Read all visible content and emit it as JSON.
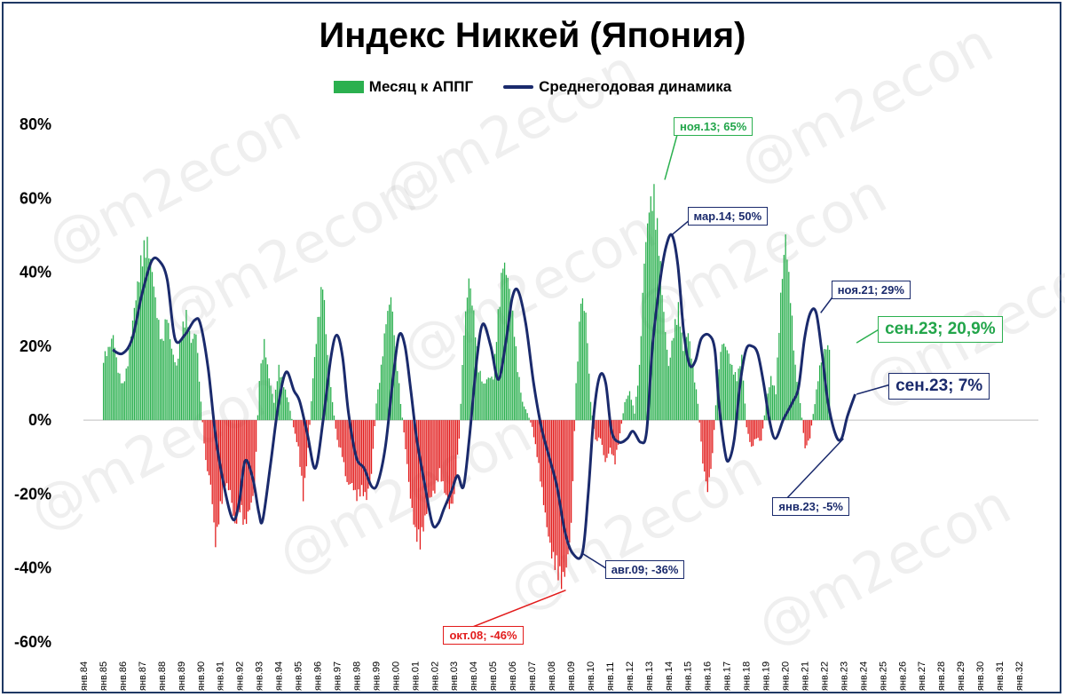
{
  "chart_data": {
    "type": "bar",
    "title": "Индекс Никкей (Япония)",
    "xlabel": "",
    "ylabel": "",
    "ylim": [
      -0.6,
      0.8
    ],
    "yticks": [
      "80%",
      "60%",
      "40%",
      "20%",
      "0%",
      "-20%",
      "-40%",
      "-60%"
    ],
    "x_tick_labels": [
      "янв.84",
      "янв.85",
      "янв.86",
      "янв.87",
      "янв.88",
      "янв.89",
      "янв.90",
      "янв.91",
      "янв.92",
      "янв.93",
      "янв.94",
      "янв.95",
      "янв.96",
      "янв.97",
      "янв.98",
      "янв.99",
      "янв.00",
      "янв.01",
      "янв.02",
      "янв.03",
      "янв.04",
      "янв.05",
      "янв.06",
      "янв.07",
      "янв.08",
      "янв.09",
      "янв.10",
      "янв.11",
      "янв.12",
      "янв.13",
      "янв.14",
      "янв.15",
      "янв.16",
      "янв.17",
      "янв.18",
      "янв.19",
      "янв.20",
      "янв.21",
      "янв.22",
      "янв.23",
      "янв.24",
      "янв.25",
      "янв.26",
      "янв.27",
      "янв.28",
      "янв.29",
      "янв.30",
      "янв.31",
      "янв.32"
    ],
    "legend_placement": "top-center",
    "series": [
      {
        "name": "Месяц к АППГ",
        "kind": "bar",
        "color_positive": "#2bb04f",
        "color_negative": "#e21b1b",
        "anchors": [
          [
            1985.0,
            0.18
          ],
          [
            1985.25,
            0.2
          ],
          [
            1985.5,
            0.24
          ],
          [
            1985.75,
            0.14
          ],
          [
            1986.0,
            0.1
          ],
          [
            1986.25,
            0.16
          ],
          [
            1986.5,
            0.28
          ],
          [
            1986.75,
            0.38
          ],
          [
            1987.0,
            0.48
          ],
          [
            1987.25,
            0.5
          ],
          [
            1987.5,
            0.42
          ],
          [
            1987.75,
            0.3
          ],
          [
            1988.0,
            0.22
          ],
          [
            1988.25,
            0.3
          ],
          [
            1988.5,
            0.2
          ],
          [
            1988.75,
            0.15
          ],
          [
            1989.0,
            0.25
          ],
          [
            1989.25,
            0.3
          ],
          [
            1989.5,
            0.22
          ],
          [
            1989.75,
            0.25
          ],
          [
            1990.0,
            0.05
          ],
          [
            1990.25,
            -0.12
          ],
          [
            1990.5,
            -0.18
          ],
          [
            1990.75,
            -0.35
          ],
          [
            1991.0,
            -0.25
          ],
          [
            1991.25,
            -0.18
          ],
          [
            1991.5,
            -0.2
          ],
          [
            1991.75,
            -0.3
          ],
          [
            1992.0,
            -0.25
          ],
          [
            1992.25,
            -0.3
          ],
          [
            1992.5,
            -0.25
          ],
          [
            1992.75,
            -0.2
          ],
          [
            1993.0,
            0.12
          ],
          [
            1993.25,
            0.22
          ],
          [
            1993.5,
            0.12
          ],
          [
            1993.75,
            0.05
          ],
          [
            1994.0,
            0.15
          ],
          [
            1994.25,
            0.1
          ],
          [
            1994.5,
            0.05
          ],
          [
            1994.75,
            -0.02
          ],
          [
            1995.0,
            -0.08
          ],
          [
            1995.25,
            -0.22
          ],
          [
            1995.5,
            -0.08
          ],
          [
            1995.75,
            0.12
          ],
          [
            1996.0,
            0.28
          ],
          [
            1996.25,
            0.4
          ],
          [
            1996.5,
            0.18
          ],
          [
            1996.75,
            0.05
          ],
          [
            1997.0,
            -0.06
          ],
          [
            1997.25,
            -0.1
          ],
          [
            1997.5,
            -0.18
          ],
          [
            1997.75,
            -0.18
          ],
          [
            1998.0,
            -0.22
          ],
          [
            1998.25,
            -0.2
          ],
          [
            1998.5,
            -0.22
          ],
          [
            1998.75,
            -0.15
          ],
          [
            1999.0,
            0.05
          ],
          [
            1999.25,
            0.15
          ],
          [
            1999.5,
            0.28
          ],
          [
            1999.75,
            0.35
          ],
          [
            2000.0,
            0.2
          ],
          [
            2000.25,
            0.05
          ],
          [
            2000.5,
            -0.08
          ],
          [
            2000.75,
            -0.22
          ],
          [
            2001.0,
            -0.32
          ],
          [
            2001.25,
            -0.35
          ],
          [
            2001.5,
            -0.28
          ],
          [
            2001.75,
            -0.22
          ],
          [
            2002.0,
            -0.2
          ],
          [
            2002.25,
            -0.15
          ],
          [
            2002.5,
            -0.2
          ],
          [
            2002.75,
            -0.25
          ],
          [
            2003.0,
            -0.22
          ],
          [
            2003.25,
            -0.05
          ],
          [
            2003.5,
            0.25
          ],
          [
            2003.75,
            0.4
          ],
          [
            2004.0,
            0.3
          ],
          [
            2004.25,
            0.15
          ],
          [
            2004.5,
            0.1
          ],
          [
            2004.75,
            0.12
          ],
          [
            2005.0,
            0.12
          ],
          [
            2005.25,
            0.3
          ],
          [
            2005.5,
            0.45
          ],
          [
            2005.75,
            0.4
          ],
          [
            2006.0,
            0.3
          ],
          [
            2006.25,
            0.15
          ],
          [
            2006.5,
            0.05
          ],
          [
            2006.75,
            0.02
          ],
          [
            2007.0,
            -0.02
          ],
          [
            2007.25,
            -0.1
          ],
          [
            2007.5,
            -0.2
          ],
          [
            2007.75,
            -0.3
          ],
          [
            2008.0,
            -0.38
          ],
          [
            2008.25,
            -0.42
          ],
          [
            2008.5,
            -0.46
          ],
          [
            2008.75,
            -0.42
          ],
          [
            2009.0,
            -0.3
          ],
          [
            2009.25,
            0.1
          ],
          [
            2009.5,
            0.35
          ],
          [
            2009.75,
            0.3
          ],
          [
            2010.0,
            0.05
          ],
          [
            2010.25,
            -0.06
          ],
          [
            2010.5,
            -0.05
          ],
          [
            2010.75,
            -0.12
          ],
          [
            2011.0,
            -0.08
          ],
          [
            2011.25,
            -0.12
          ],
          [
            2011.5,
            -0.04
          ],
          [
            2011.75,
            0.05
          ],
          [
            2012.0,
            0.08
          ],
          [
            2012.25,
            0.02
          ],
          [
            2012.5,
            0.15
          ],
          [
            2012.75,
            0.45
          ],
          [
            2013.0,
            0.6
          ],
          [
            2013.25,
            0.64
          ],
          [
            2013.5,
            0.5
          ],
          [
            2013.75,
            0.3
          ],
          [
            2014.0,
            0.15
          ],
          [
            2014.25,
            0.25
          ],
          [
            2014.5,
            0.32
          ],
          [
            2014.75,
            0.2
          ],
          [
            2015.0,
            0.25
          ],
          [
            2015.25,
            0.15
          ],
          [
            2015.5,
            0.05
          ],
          [
            2015.75,
            -0.12
          ],
          [
            2016.0,
            -0.2
          ],
          [
            2016.25,
            -0.1
          ],
          [
            2016.5,
            0.12
          ],
          [
            2016.75,
            0.22
          ],
          [
            2017.0,
            0.2
          ],
          [
            2017.25,
            0.15
          ],
          [
            2017.5,
            0.12
          ],
          [
            2017.75,
            0.18
          ],
          [
            2018.0,
            -0.02
          ],
          [
            2018.25,
            -0.08
          ],
          [
            2018.5,
            -0.05
          ],
          [
            2018.75,
            -0.06
          ],
          [
            2019.0,
            0.05
          ],
          [
            2019.25,
            0.12
          ],
          [
            2019.5,
            0.08
          ],
          [
            2019.75,
            0.35
          ],
          [
            2020.0,
            0.52
          ],
          [
            2020.25,
            0.35
          ],
          [
            2020.5,
            0.15
          ],
          [
            2020.75,
            0.05
          ],
          [
            2021.0,
            -0.08
          ],
          [
            2021.25,
            -0.05
          ],
          [
            2021.5,
            0.05
          ],
          [
            2021.75,
            0.15
          ],
          [
            2022.0,
            0.2
          ],
          [
            2022.25,
            0.209
          ]
        ]
      },
      {
        "name": "Среднегодовая динамика",
        "kind": "line",
        "color": "#1a2a6c",
        "points": [
          [
            1985.5,
            0.19
          ],
          [
            1986.0,
            0.18
          ],
          [
            1986.5,
            0.22
          ],
          [
            1987.0,
            0.34
          ],
          [
            1987.5,
            0.43
          ],
          [
            1987.9,
            0.43
          ],
          [
            1988.3,
            0.38
          ],
          [
            1988.7,
            0.22
          ],
          [
            1989.2,
            0.23
          ],
          [
            1989.7,
            0.27
          ],
          [
            1990.0,
            0.26
          ],
          [
            1990.4,
            0.14
          ],
          [
            1990.8,
            -0.05
          ],
          [
            1991.3,
            -0.2
          ],
          [
            1991.7,
            -0.27
          ],
          [
            1992.0,
            -0.22
          ],
          [
            1992.3,
            -0.11
          ],
          [
            1992.7,
            -0.16
          ],
          [
            1993.0,
            -0.25
          ],
          [
            1993.2,
            -0.27
          ],
          [
            1993.6,
            -0.12
          ],
          [
            1994.0,
            0.04
          ],
          [
            1994.4,
            0.13
          ],
          [
            1994.8,
            0.08
          ],
          [
            1995.1,
            0.05
          ],
          [
            1995.5,
            -0.04
          ],
          [
            1995.9,
            -0.13
          ],
          [
            1996.3,
            0.0
          ],
          [
            1996.7,
            0.17
          ],
          [
            1997.0,
            0.23
          ],
          [
            1997.3,
            0.17
          ],
          [
            1997.6,
            0.02
          ],
          [
            1998.0,
            -0.1
          ],
          [
            1998.4,
            -0.13
          ],
          [
            1998.8,
            -0.18
          ],
          [
            1999.1,
            -0.17
          ],
          [
            1999.5,
            -0.07
          ],
          [
            1999.9,
            0.12
          ],
          [
            2000.2,
            0.23
          ],
          [
            2000.5,
            0.2
          ],
          [
            2000.8,
            0.08
          ],
          [
            2001.1,
            -0.05
          ],
          [
            2001.5,
            -0.17
          ],
          [
            2001.9,
            -0.28
          ],
          [
            2002.2,
            -0.28
          ],
          [
            2002.5,
            -0.24
          ],
          [
            2002.9,
            -0.19
          ],
          [
            2003.2,
            -0.15
          ],
          [
            2003.5,
            -0.18
          ],
          [
            2003.8,
            -0.05
          ],
          [
            2004.2,
            0.17
          ],
          [
            2004.5,
            0.26
          ],
          [
            2004.9,
            0.2
          ],
          [
            2005.3,
            0.11
          ],
          [
            2005.7,
            0.22
          ],
          [
            2006.0,
            0.33
          ],
          [
            2006.3,
            0.35
          ],
          [
            2006.7,
            0.26
          ],
          [
            2007.1,
            0.1
          ],
          [
            2007.5,
            -0.02
          ],
          [
            2007.9,
            -0.1
          ],
          [
            2008.3,
            -0.18
          ],
          [
            2008.7,
            -0.3
          ],
          [
            2009.1,
            -0.36
          ],
          [
            2009.6,
            -0.36
          ],
          [
            2009.9,
            -0.2
          ],
          [
            2010.2,
            0.02
          ],
          [
            2010.5,
            0.12
          ],
          [
            2010.8,
            0.1
          ],
          [
            2011.1,
            -0.03
          ],
          [
            2011.5,
            -0.06
          ],
          [
            2011.9,
            -0.05
          ],
          [
            2012.2,
            -0.03
          ],
          [
            2012.6,
            -0.06
          ],
          [
            2012.9,
            -0.03
          ],
          [
            2013.2,
            0.2
          ],
          [
            2013.6,
            0.38
          ],
          [
            2013.9,
            0.47
          ],
          [
            2014.2,
            0.5
          ],
          [
            2014.5,
            0.42
          ],
          [
            2014.8,
            0.24
          ],
          [
            2015.1,
            0.15
          ],
          [
            2015.4,
            0.16
          ],
          [
            2015.7,
            0.22
          ],
          [
            2016.1,
            0.23
          ],
          [
            2016.4,
            0.19
          ],
          [
            2016.6,
            0.05
          ],
          [
            2016.9,
            -0.08
          ],
          [
            2017.1,
            -0.11
          ],
          [
            2017.4,
            -0.05
          ],
          [
            2017.7,
            0.1
          ],
          [
            2018.0,
            0.19
          ],
          [
            2018.3,
            0.2
          ],
          [
            2018.6,
            0.18
          ],
          [
            2018.9,
            0.1
          ],
          [
            2019.2,
            0.0
          ],
          [
            2019.5,
            -0.05
          ],
          [
            2019.9,
            0.0
          ],
          [
            2020.1,
            0.02
          ],
          [
            2020.4,
            0.05
          ],
          [
            2020.7,
            0.09
          ],
          [
            2021.0,
            0.22
          ],
          [
            2021.3,
            0.29
          ],
          [
            2021.6,
            0.29
          ],
          [
            2021.9,
            0.18
          ],
          [
            2022.2,
            0.05
          ],
          [
            2022.6,
            -0.04
          ],
          [
            2022.9,
            -0.05
          ],
          [
            2023.2,
            0.01
          ],
          [
            2023.6,
            0.07
          ]
        ]
      }
    ],
    "annotations": [
      {
        "text": "ноя.13; 65%",
        "x": 2013.83,
        "y": 0.65,
        "style": "green"
      },
      {
        "text": "мар.14; 50%",
        "x": 2014.17,
        "y": 0.5,
        "style": "navy"
      },
      {
        "text": "ноя.21; 29%",
        "x": 2021.83,
        "y": 0.29,
        "style": "navy"
      },
      {
        "text": "сен.23; 20,9%",
        "x": 2023.67,
        "y": 0.209,
        "style": "green"
      },
      {
        "text": "сен.23; 7%",
        "x": 2023.67,
        "y": 0.07,
        "style": "navy"
      },
      {
        "text": "янв.23; -5%",
        "x": 2023.0,
        "y": -0.05,
        "style": "navy"
      },
      {
        "text": "авг.09; -36%",
        "x": 2009.58,
        "y": -0.36,
        "style": "navy"
      },
      {
        "text": "окт.08; -46%",
        "x": 2008.75,
        "y": -0.46,
        "style": "red"
      }
    ]
  },
  "watermark": "@m2econ"
}
